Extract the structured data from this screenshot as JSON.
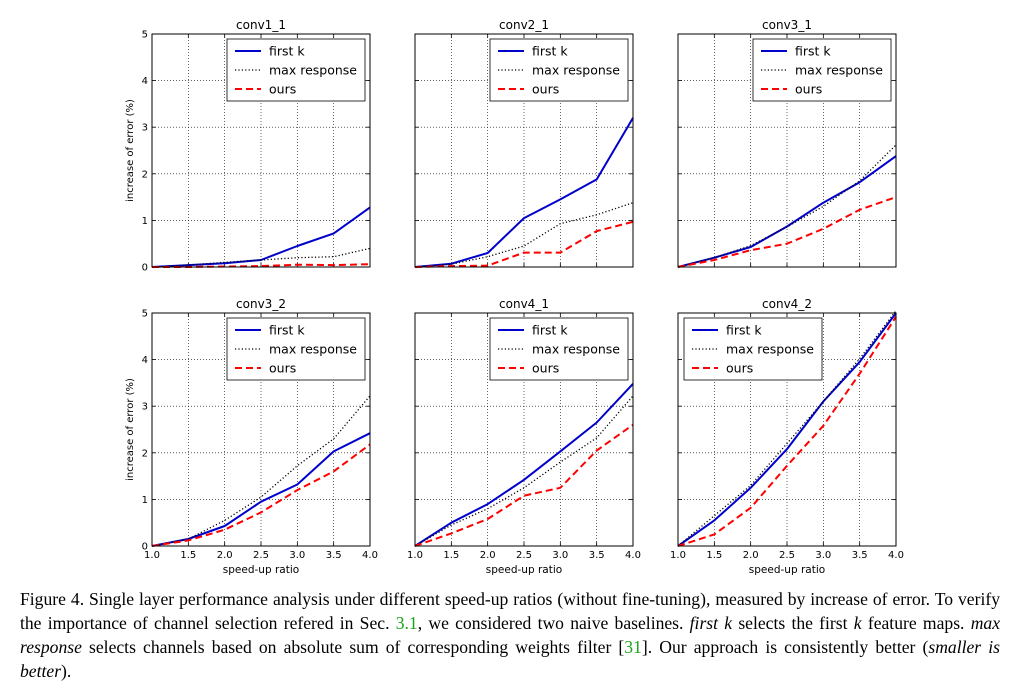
{
  "chart_data": [
    {
      "type": "line",
      "title": "conv1_1",
      "xlabel": "",
      "ylabel": "increase of error (%)",
      "x": [
        1.0,
        1.5,
        2.0,
        2.5,
        3.0,
        3.5,
        4.0
      ],
      "xlim": [
        1.0,
        4.0
      ],
      "ylim": [
        0,
        5
      ],
      "xticks": [],
      "yticks": [
        "0",
        "1",
        "2",
        "3",
        "4",
        "5"
      ],
      "legend_position": "top-right",
      "series": [
        {
          "name": "first k",
          "values": [
            0.0,
            0.04,
            0.08,
            0.15,
            0.45,
            0.72,
            1.28
          ]
        },
        {
          "name": "max response",
          "values": [
            0.0,
            0.04,
            0.1,
            0.15,
            0.2,
            0.22,
            0.4
          ]
        },
        {
          "name": "ours",
          "values": [
            0.0,
            0.0,
            0.01,
            0.02,
            0.05,
            0.04,
            0.06
          ]
        }
      ]
    },
    {
      "type": "line",
      "title": "conv2_1",
      "xlabel": "",
      "ylabel": "",
      "x": [
        1.0,
        1.5,
        2.0,
        2.5,
        3.0,
        3.5,
        4.0
      ],
      "xlim": [
        1.0,
        4.0
      ],
      "ylim": [
        0,
        5
      ],
      "xticks": [],
      "yticks": [],
      "legend_position": "top-right",
      "series": [
        {
          "name": "first k",
          "values": [
            0.0,
            0.07,
            0.3,
            1.05,
            1.45,
            1.88,
            3.2
          ]
        },
        {
          "name": "max response",
          "values": [
            0.0,
            0.06,
            0.22,
            0.45,
            0.93,
            1.12,
            1.38
          ]
        },
        {
          "name": "ours",
          "values": [
            0.0,
            0.02,
            0.03,
            0.31,
            0.31,
            0.77,
            0.97
          ]
        }
      ]
    },
    {
      "type": "line",
      "title": "conv3_1",
      "xlabel": "",
      "ylabel": "",
      "x": [
        1.0,
        1.5,
        2.0,
        2.5,
        3.0,
        3.5,
        4.0
      ],
      "xlim": [
        1.0,
        4.0
      ],
      "ylim": [
        0,
        5
      ],
      "xticks": [],
      "yticks": [],
      "legend_position": "top-right",
      "series": [
        {
          "name": "first k",
          "values": [
            0.0,
            0.2,
            0.43,
            0.87,
            1.38,
            1.82,
            2.38
          ]
        },
        {
          "name": "max response",
          "values": [
            0.0,
            0.2,
            0.46,
            0.86,
            1.3,
            1.85,
            2.62
          ]
        },
        {
          "name": "ours",
          "values": [
            0.0,
            0.15,
            0.36,
            0.5,
            0.82,
            1.23,
            1.5
          ]
        }
      ]
    },
    {
      "type": "line",
      "title": "conv3_2",
      "xlabel": "speed-up ratio",
      "ylabel": "increase of error (%)",
      "x": [
        1.0,
        1.5,
        2.0,
        2.5,
        3.0,
        3.5,
        4.0
      ],
      "xlim": [
        1.0,
        4.0
      ],
      "ylim": [
        0,
        5
      ],
      "xticks": [
        "1.0",
        "1.5",
        "2.0",
        "2.5",
        "3.0",
        "3.5",
        "4.0"
      ],
      "yticks": [
        "0",
        "1",
        "2",
        "3",
        "4",
        "5"
      ],
      "legend_position": "top-right",
      "series": [
        {
          "name": "first k",
          "values": [
            0.0,
            0.15,
            0.43,
            0.95,
            1.32,
            2.03,
            2.42
          ]
        },
        {
          "name": "max response",
          "values": [
            0.0,
            0.15,
            0.55,
            1.05,
            1.72,
            2.3,
            3.22
          ]
        },
        {
          "name": "ours",
          "values": [
            0.0,
            0.12,
            0.35,
            0.72,
            1.2,
            1.6,
            2.18
          ]
        }
      ]
    },
    {
      "type": "line",
      "title": "conv4_1",
      "xlabel": "speed-up ratio",
      "ylabel": "",
      "x": [
        1.0,
        1.5,
        2.0,
        2.5,
        3.0,
        3.5,
        4.0
      ],
      "xlim": [
        1.0,
        4.0
      ],
      "ylim": [
        0,
        5
      ],
      "xticks": [
        "1.0",
        "1.5",
        "2.0",
        "2.5",
        "3.0",
        "3.5",
        "4.0"
      ],
      "yticks": [],
      "legend_position": "top-right",
      "series": [
        {
          "name": "first k",
          "values": [
            0.0,
            0.5,
            0.9,
            1.42,
            2.03,
            2.65,
            3.48
          ]
        },
        {
          "name": "max response",
          "values": [
            0.0,
            0.45,
            0.8,
            1.25,
            1.8,
            2.32,
            3.22
          ]
        },
        {
          "name": "ours",
          "values": [
            0.0,
            0.27,
            0.58,
            1.08,
            1.25,
            2.05,
            2.6
          ]
        }
      ]
    },
    {
      "type": "line",
      "title": "conv4_2",
      "xlabel": "speed-up ratio",
      "ylabel": "",
      "x": [
        1.0,
        1.5,
        2.0,
        2.5,
        3.0,
        3.5,
        4.0
      ],
      "xlim": [
        1.0,
        4.0
      ],
      "ylim": [
        0,
        5
      ],
      "xticks": [
        "1.0",
        "1.5",
        "2.0",
        "2.5",
        "3.0",
        "3.5",
        "4.0"
      ],
      "yticks": [],
      "legend_position": "top-left",
      "series": [
        {
          "name": "first k",
          "values": [
            0.0,
            0.55,
            1.25,
            2.08,
            3.1,
            3.95,
            5.0
          ]
        },
        {
          "name": "max response",
          "values": [
            0.0,
            0.65,
            1.3,
            2.2,
            3.1,
            4.02,
            5.05
          ]
        },
        {
          "name": "ours",
          "values": [
            0.0,
            0.25,
            0.82,
            1.72,
            2.58,
            3.7,
            4.92
          ]
        }
      ]
    }
  ],
  "styles": {
    "first k": "#0000cc",
    "max response": "#000000",
    "ours": "#ff0000"
  },
  "caption": {
    "label": "Figure 4.",
    "text_1": " Single layer performance analysis under different speed-up ratios (without fine-tuning), measured by increase of error. To verify the importance of channel selection refered in Sec. ",
    "ref_sec": "3.1",
    "text_2": ", we considered two naive baselines. ",
    "em_first_k": "first k",
    "text_3": " selects the first ",
    "em_k": "k",
    "text_4": " feature maps. ",
    "em_max_response": "max response",
    "text_5": " selects channels based on absolute sum of corresponding weights filter [",
    "ref_cite": "31",
    "text_6": "]. Our approach is consistently better (",
    "em_smaller": "smaller is better",
    "text_7": ")."
  }
}
